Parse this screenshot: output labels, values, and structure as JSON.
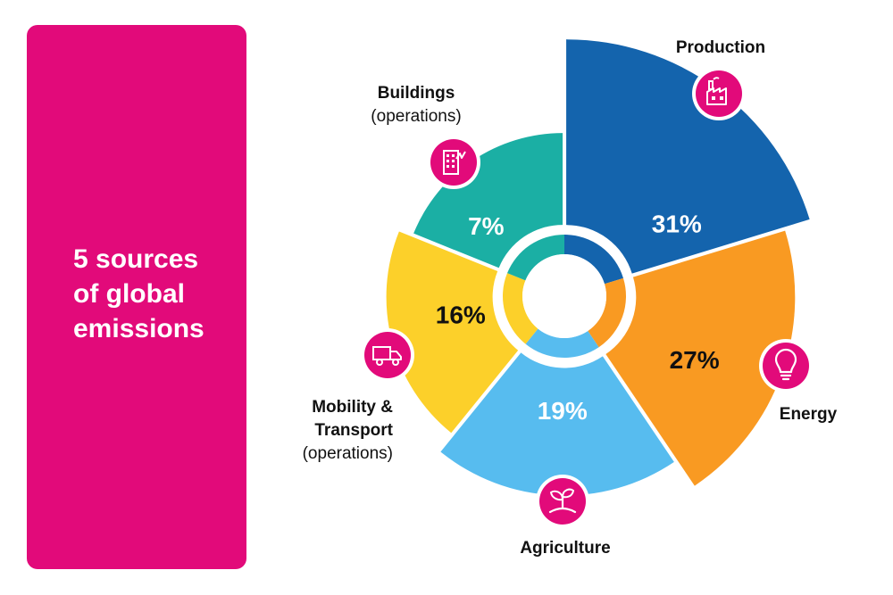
{
  "panel": {
    "title_lines": [
      "5 sources",
      "of global",
      "emissions"
    ],
    "color": "#E20A7A"
  },
  "chart_data": {
    "type": "pie",
    "variant": "polar-area",
    "title": "5 sources of global emissions",
    "unit": "%",
    "slices": [
      {
        "name": "Production",
        "value": 31,
        "label": "31%",
        "color": "#1464AD",
        "text_color": "#FFFFFF",
        "icon": "factory-icon",
        "label_lines": [
          {
            "text": "Production",
            "bold": true
          }
        ]
      },
      {
        "name": "Energy",
        "value": 27,
        "label": "27%",
        "color": "#F99A22",
        "text_color": "#111111",
        "icon": "lightbulb-icon",
        "label_lines": [
          {
            "text": "Energy",
            "bold": true
          }
        ]
      },
      {
        "name": "Agriculture",
        "value": 19,
        "label": "19%",
        "color": "#57BCEF",
        "text_color": "#FFFFFF",
        "icon": "plant-icon",
        "label_lines": [
          {
            "text": "Agriculture",
            "bold": true
          }
        ]
      },
      {
        "name": "Mobility & Transport (operations)",
        "value": 16,
        "label": "16%",
        "color": "#FCD02A",
        "text_color": "#111111",
        "icon": "truck-icon",
        "label_lines": [
          {
            "text": "Mobility &",
            "bold": true
          },
          {
            "text": "Transport",
            "bold": true
          },
          {
            "text": "(operations)",
            "bold": false
          }
        ]
      },
      {
        "name": "Buildings (operations)",
        "value": 7,
        "label": "7%",
        "color": "#1BAFA4",
        "text_color": "#FFFFFF",
        "icon": "building-icon",
        "label_lines": [
          {
            "text": "Buildings",
            "bold": true
          },
          {
            "text": "(operations)",
            "bold": false
          }
        ]
      }
    ]
  },
  "colors": {
    "accent": "#E20A7A",
    "icon_ring": "#FFFFFF"
  }
}
